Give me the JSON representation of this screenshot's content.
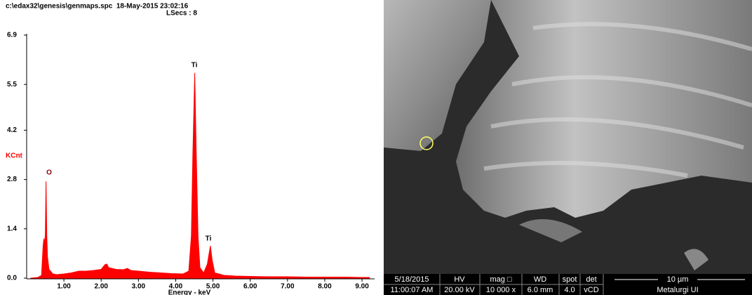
{
  "chart_data": {
    "type": "area",
    "title": "c:\\edax32\\genesis\\genmaps.spc  18-May-2015 23:02:16",
    "subtitle": "LSecs : 8",
    "y_label": "KCnt",
    "x_label": "Energy - keV",
    "color": "#ff0000",
    "annotations": [
      "O",
      "Ti",
      "Ti"
    ],
    "x": [
      0.1,
      0.3,
      0.4,
      0.44,
      0.46,
      0.48,
      0.5,
      0.52,
      0.54,
      0.56,
      0.6,
      0.7,
      0.8,
      1.0,
      1.2,
      1.4,
      1.6,
      1.8,
      2.0,
      2.1,
      2.15,
      2.2,
      2.4,
      2.6,
      2.7,
      2.8,
      3.0,
      3.3,
      3.6,
      3.9,
      4.2,
      4.35,
      4.42,
      4.46,
      4.51,
      4.55,
      4.6,
      4.65,
      4.75,
      4.85,
      4.93,
      4.98,
      5.05,
      5.3,
      5.6,
      6.0,
      6.5,
      7.0,
      7.5,
      8.0,
      8.5,
      9.0,
      9.2
    ],
    "values": [
      0.0,
      0.02,
      0.08,
      0.9,
      1.1,
      1.05,
      1.2,
      2.75,
      1.2,
      0.6,
      0.25,
      0.12,
      0.1,
      0.12,
      0.15,
      0.2,
      0.2,
      0.22,
      0.25,
      0.38,
      0.4,
      0.3,
      0.25,
      0.24,
      0.28,
      0.22,
      0.2,
      0.17,
      0.15,
      0.13,
      0.12,
      0.2,
      1.2,
      3.5,
      5.83,
      3.6,
      1.2,
      0.3,
      0.15,
      0.4,
      0.92,
      0.5,
      0.15,
      0.08,
      0.06,
      0.05,
      0.04,
      0.04,
      0.03,
      0.03,
      0.03,
      0.02,
      0.02
    ],
    "xlim": [
      0,
      9.3
    ],
    "ylim": [
      0,
      6.9
    ],
    "xticks": [
      {
        "value": 1,
        "label": "1.00"
      },
      {
        "value": 2,
        "label": "2.00"
      },
      {
        "value": 3,
        "label": "3.00"
      },
      {
        "value": 4,
        "label": "4.00"
      },
      {
        "value": 5,
        "label": "5.00"
      },
      {
        "value": 6,
        "label": "6.00"
      },
      {
        "value": 7,
        "label": "7.00"
      },
      {
        "value": 8,
        "label": "8.00"
      },
      {
        "value": 9,
        "label": "9.00"
      }
    ],
    "yticks": [
      {
        "value": 0,
        "label": "0.0"
      },
      1.4,
      2.8,
      4.2,
      5.5,
      6.9
    ]
  },
  "image_panel": {
    "info": {
      "date": "5/18/2015",
      "time": "11:00:07 AM",
      "hv_label": "HV",
      "hv": "20.00 kV",
      "mag_label": "mag □",
      "mag": "10 000 x",
      "wd_label": "WD",
      "wd": "6.0 mm",
      "spot_label": "spot",
      "spot": "4.0",
      "det_label": "det",
      "det": "vCD",
      "scale": "10 µm",
      "lab": "Metalurgi UI"
    }
  }
}
